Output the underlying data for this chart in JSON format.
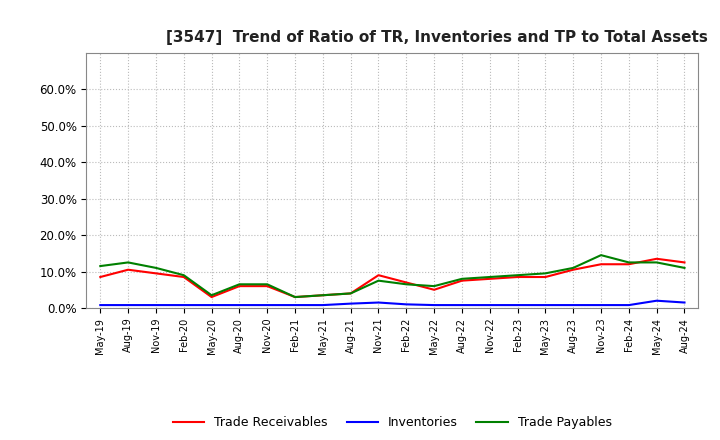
{
  "title": "[3547]  Trend of Ratio of TR, Inventories and TP to Total Assets",
  "x_labels": [
    "May-19",
    "Aug-19",
    "Nov-19",
    "Feb-20",
    "May-20",
    "Aug-20",
    "Nov-20",
    "Feb-21",
    "May-21",
    "Aug-21",
    "Nov-21",
    "Feb-22",
    "May-22",
    "Aug-22",
    "Nov-22",
    "Feb-23",
    "May-23",
    "Aug-23",
    "Nov-23",
    "Feb-24",
    "May-24",
    "Aug-24"
  ],
  "trade_receivables": [
    8.5,
    10.5,
    9.5,
    8.5,
    3.0,
    6.0,
    6.0,
    3.0,
    3.5,
    4.0,
    9.0,
    7.0,
    5.0,
    7.5,
    8.0,
    8.5,
    8.5,
    10.5,
    12.0,
    12.0,
    13.5,
    12.5
  ],
  "inventories": [
    0.8,
    0.8,
    0.8,
    0.8,
    0.8,
    0.8,
    0.8,
    0.8,
    0.8,
    1.2,
    1.5,
    1.0,
    0.8,
    0.8,
    0.8,
    0.8,
    0.8,
    0.8,
    0.8,
    0.8,
    2.0,
    1.5
  ],
  "trade_payables": [
    11.5,
    12.5,
    11.0,
    9.0,
    3.5,
    6.5,
    6.5,
    3.0,
    3.5,
    4.0,
    7.5,
    6.5,
    6.0,
    8.0,
    8.5,
    9.0,
    9.5,
    11.0,
    14.5,
    12.5,
    12.5,
    11.0
  ],
  "tr_color": "#ff0000",
  "inv_color": "#0000ff",
  "tp_color": "#008000",
  "background_color": "#ffffff",
  "plot_bg_color": "#ffffff",
  "grid_color": "#aaaaaa",
  "ylim": [
    0,
    70
  ],
  "yticks": [
    0,
    10,
    20,
    30,
    40,
    50,
    60
  ],
  "ytick_labels": [
    "0.0%",
    "10.0%",
    "20.0%",
    "30.0%",
    "40.0%",
    "50.0%",
    "60.0%"
  ],
  "legend_labels": [
    "Trade Receivables",
    "Inventories",
    "Trade Payables"
  ]
}
